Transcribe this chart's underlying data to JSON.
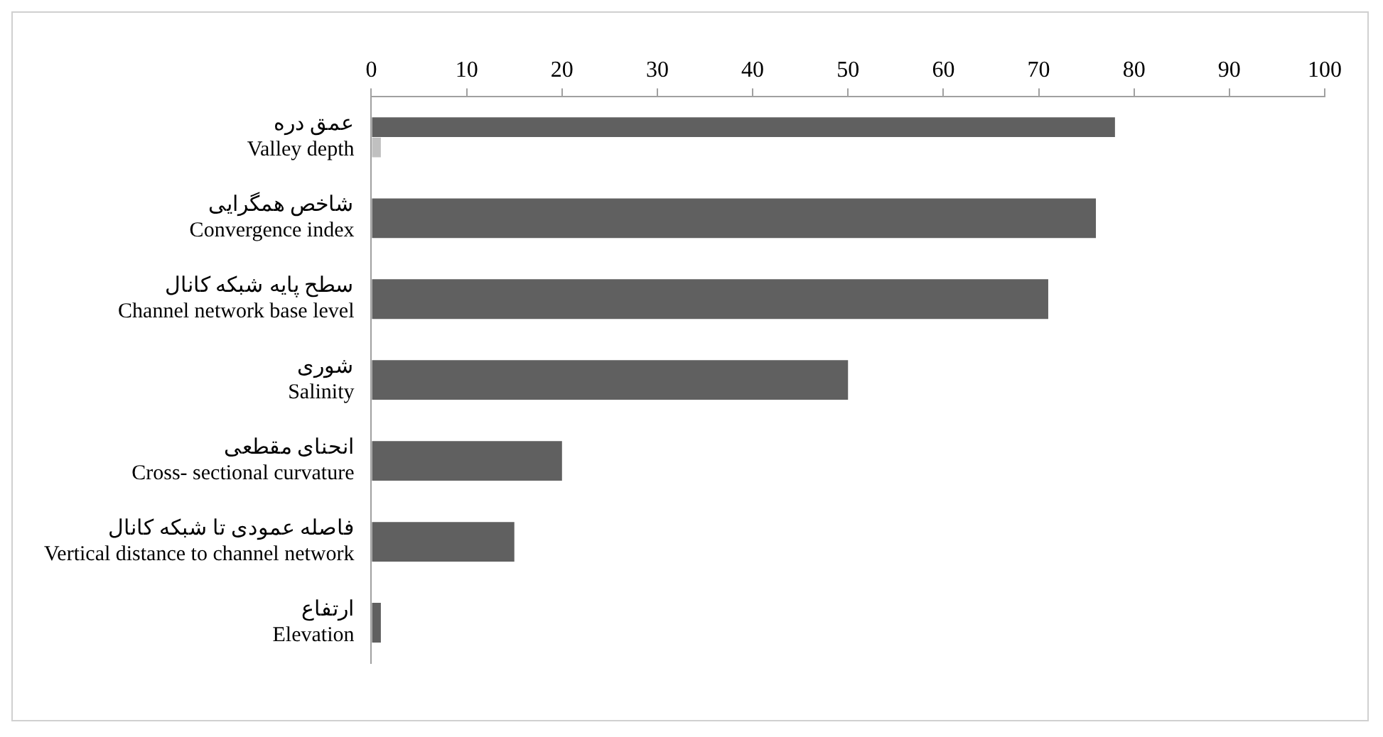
{
  "chart_data": {
    "type": "bar",
    "orientation": "horizontal",
    "categories": [
      "عمق دره\nValley depth",
      "شاخص همگرایی\nConvergence index",
      "سطح پایه شبکه کانال\nChannel network base level",
      "شوری\nSalinity",
      "انحنای مقطعی\nCross- sectional curvature",
      "فاصله عمودی تا شبکه کانال\nVertical distance to channel network",
      "ارتفاع\nElevation"
    ],
    "series": [
      {
        "color": "#606060",
        "values": [
          78,
          76,
          71,
          50,
          20,
          15,
          1
        ]
      },
      {
        "color": "#c0c0c0",
        "values": [
          1,
          null,
          null,
          null,
          null,
          null,
          null
        ]
      }
    ],
    "xlim": [
      0,
      100
    ],
    "xticks": [
      0,
      10,
      20,
      30,
      40,
      50,
      60,
      70,
      80,
      90,
      100
    ],
    "grid": false,
    "legend": false
  }
}
